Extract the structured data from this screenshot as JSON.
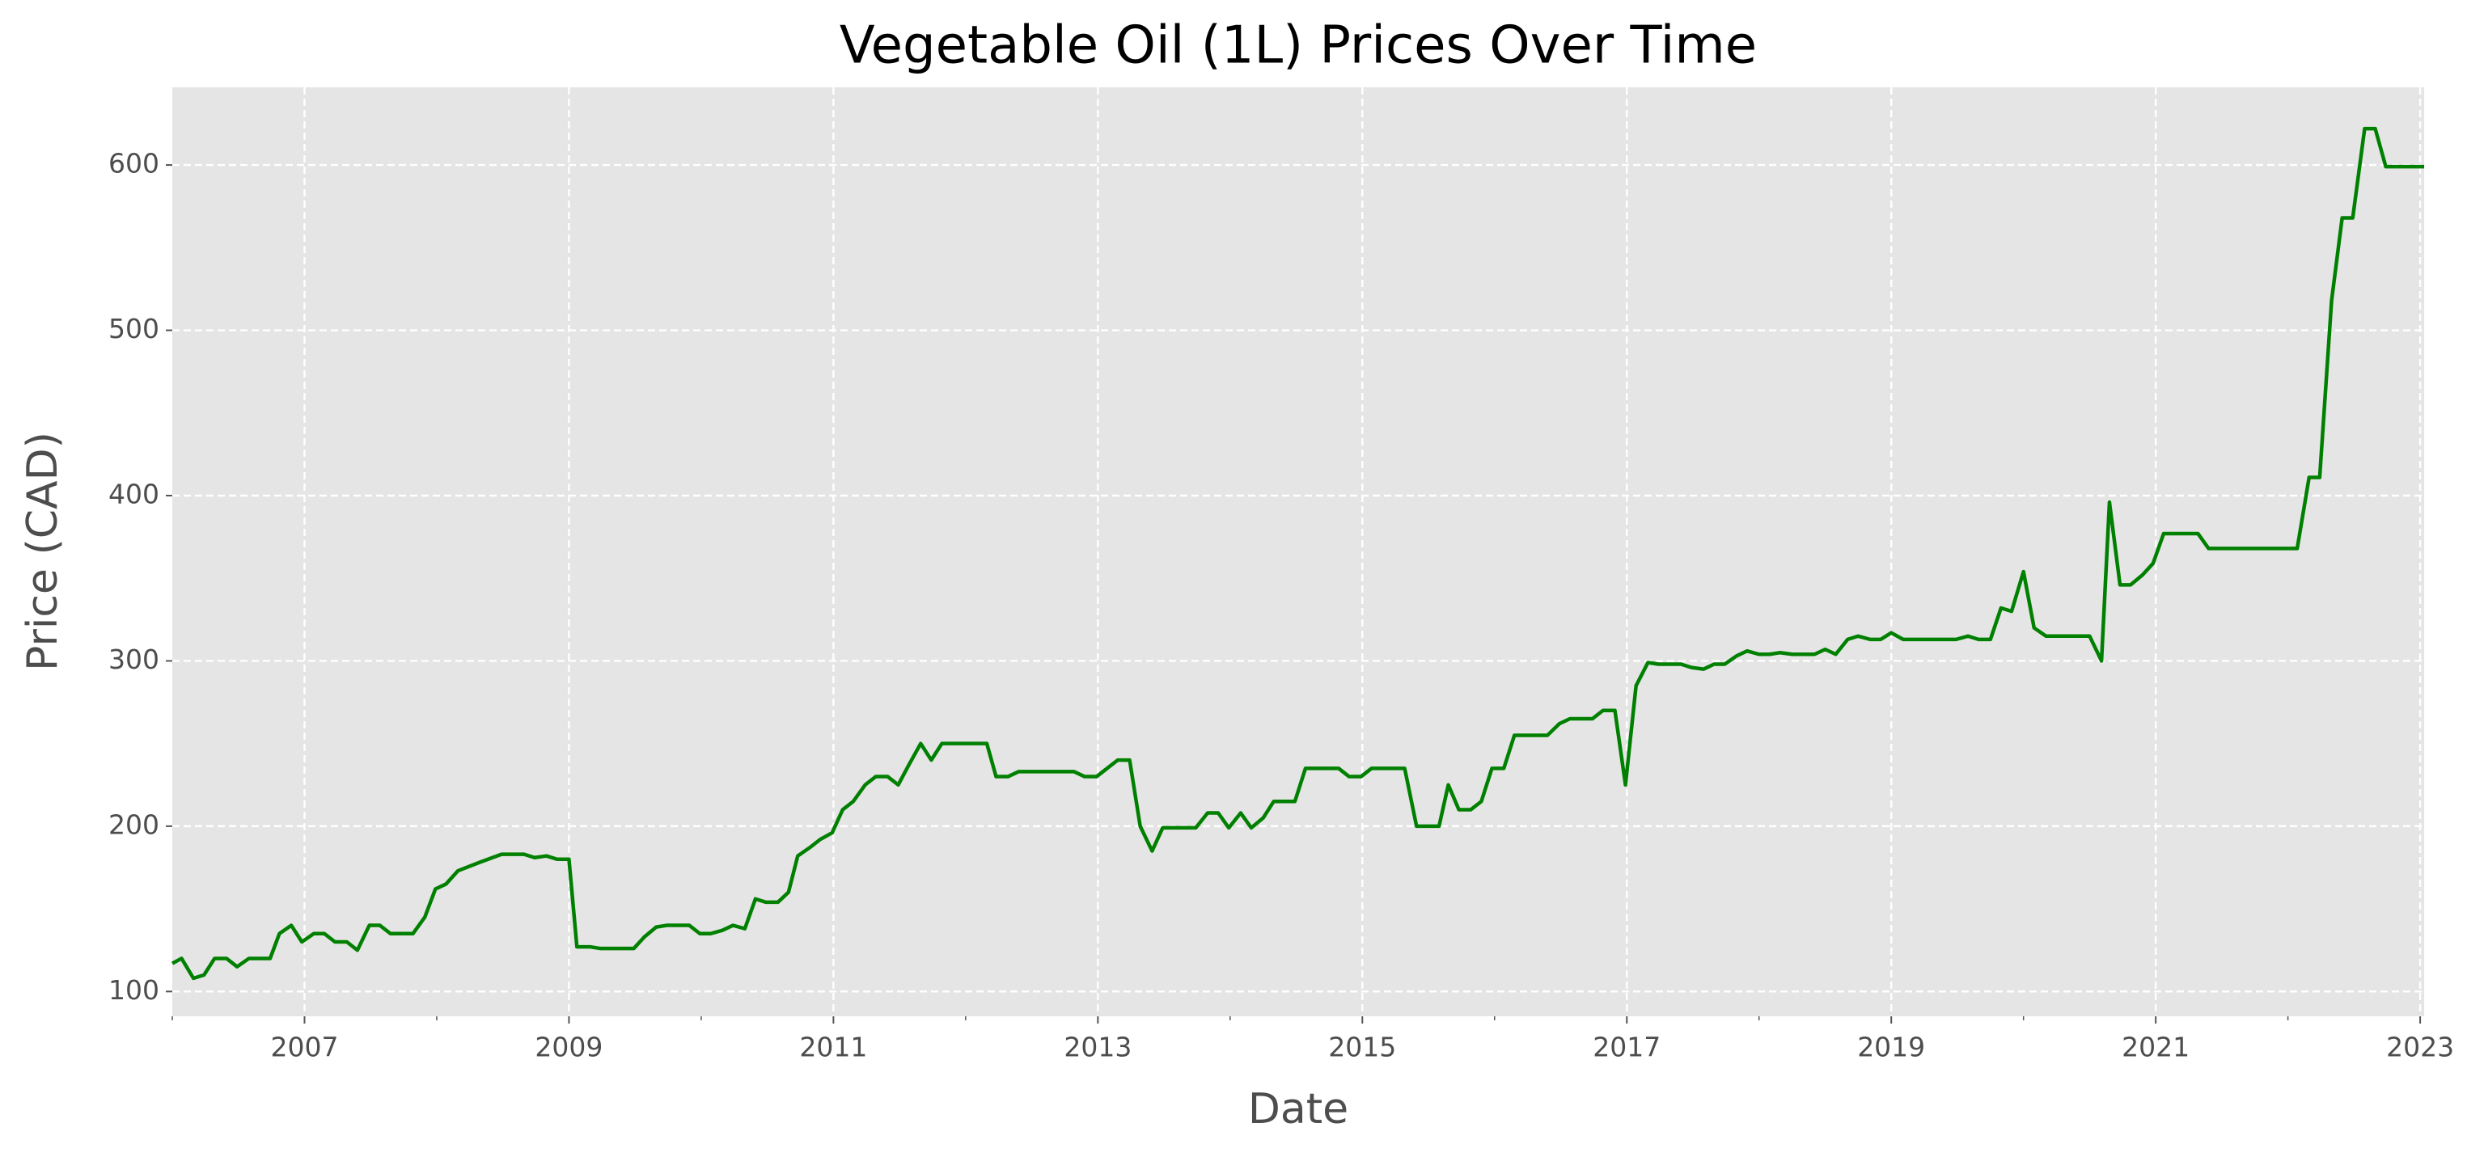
{
  "chart_data": {
    "type": "line",
    "title": "Vegetable Oil (1L) Prices Over Time",
    "x_label": "Date",
    "y_label": "Price (CAD)",
    "color": "#008000",
    "grid": true,
    "xlim": [
      2006,
      2023.03
    ],
    "ylim": [
      85,
      647
    ],
    "xticks": [
      2007,
      2009,
      2011,
      2013,
      2015,
      2017,
      2019,
      2021,
      2023
    ],
    "yticks": [
      100,
      200,
      300,
      400,
      500,
      600
    ],
    "x": [
      2006.0,
      2006.07,
      2006.16,
      2006.24,
      2006.32,
      2006.41,
      2006.49,
      2006.58,
      2006.74,
      2006.81,
      2006.9,
      2006.98,
      2007.07,
      2007.15,
      2007.23,
      2007.32,
      2007.4,
      2007.49,
      2007.57,
      2007.65,
      2007.82,
      2007.91,
      2007.99,
      2008.07,
      2008.16,
      2008.32,
      2008.49,
      2008.66,
      2008.74,
      2008.83,
      2008.91,
      2009.0,
      2009.06,
      2009.16,
      2009.24,
      2009.49,
      2009.57,
      2009.66,
      2009.74,
      2009.91,
      2009.99,
      2010.07,
      2010.16,
      2010.24,
      2010.33,
      2010.41,
      2010.49,
      2010.58,
      2010.66,
      2010.73,
      2010.82,
      2010.9,
      2010.99,
      2011.07,
      2011.15,
      2011.24,
      2011.32,
      2011.41,
      2011.49,
      2011.57,
      2011.66,
      2011.74,
      2011.82,
      2012.16,
      2012.23,
      2012.32,
      2012.4,
      2012.82,
      2012.9,
      2012.99,
      2013.07,
      2013.15,
      2013.24,
      2013.32,
      2013.41,
      2013.49,
      2013.74,
      2013.83,
      2013.91,
      2013.99,
      2014.08,
      2014.16,
      2014.25,
      2014.33,
      2014.49,
      2014.57,
      2014.82,
      2014.9,
      2014.99,
      2015.07,
      2015.32,
      2015.41,
      2015.58,
      2015.65,
      2015.73,
      2015.82,
      2015.9,
      2015.98,
      2016.07,
      2016.15,
      2016.4,
      2016.49,
      2016.57,
      2016.74,
      2016.82,
      2016.91,
      2016.99,
      2017.07,
      2017.16,
      2017.24,
      2017.41,
      2017.49,
      2017.58,
      2017.66,
      2017.74,
      2017.83,
      2017.91,
      2018.0,
      2018.08,
      2018.16,
      2018.25,
      2018.42,
      2018.5,
      2018.58,
      2018.67,
      2018.75,
      2018.84,
      2018.92,
      2019.0,
      2019.09,
      2019.49,
      2019.58,
      2019.66,
      2019.75,
      2019.83,
      2019.91,
      2020.0,
      2020.08,
      2020.17,
      2020.5,
      2020.59,
      2020.65,
      2020.73,
      2020.81,
      2020.9,
      2020.98,
      2021.06,
      2021.32,
      2021.4,
      2022.07,
      2022.16,
      2022.24,
      2022.33,
      2022.41,
      2022.49,
      2022.58,
      2022.66,
      2022.74,
      2023.03
    ],
    "values": [
      117,
      120,
      108,
      110,
      120,
      120,
      115,
      120,
      120,
      135,
      140,
      130,
      135,
      135,
      130,
      130,
      125,
      140,
      140,
      135,
      135,
      145,
      162,
      165,
      173,
      178,
      183,
      183,
      181,
      182,
      180,
      180,
      127,
      127,
      126,
      126,
      133,
      139,
      140,
      140,
      135,
      135,
      137,
      140,
      138,
      156,
      154,
      154,
      160,
      182,
      187,
      192,
      196,
      210,
      215,
      225,
      230,
      230,
      225,
      237,
      250,
      240,
      250,
      250,
      230,
      230,
      233,
      233,
      230,
      230,
      235,
      240,
      240,
      200,
      185,
      199,
      199,
      208,
      208,
      199,
      208,
      199,
      205,
      215,
      215,
      235,
      235,
      230,
      230,
      235,
      235,
      200,
      200,
      225,
      210,
      210,
      215,
      235,
      235,
      255,
      255,
      262,
      265,
      265,
      270,
      270,
      225,
      285,
      299,
      298,
      298,
      296,
      295,
      298,
      298,
      303,
      306,
      304,
      304,
      305,
      304,
      304,
      307,
      304,
      313,
      315,
      313,
      313,
      317,
      313,
      313,
      315,
      313,
      313,
      332,
      330,
      354,
      320,
      315,
      315,
      300,
      396,
      346,
      346,
      352,
      359,
      377,
      377,
      368,
      368,
      411,
      411,
      518,
      568,
      568,
      622,
      622,
      599,
      599
    ]
  }
}
